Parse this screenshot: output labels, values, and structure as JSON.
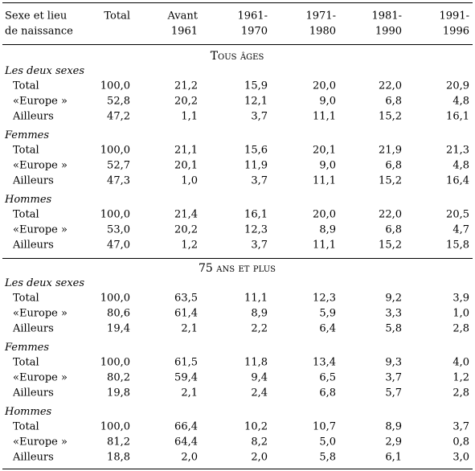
{
  "table": {
    "header": [
      [
        "Sexe et lieu",
        "de naissance"
      ],
      [
        "Total"
      ],
      [
        "Avant",
        "1961"
      ],
      [
        "1961-",
        "1970"
      ],
      [
        "1971-",
        "1980"
      ],
      [
        "1981-",
        "1990"
      ],
      [
        "1991-",
        "1996"
      ]
    ],
    "sections": [
      {
        "title": "Tous âges",
        "groups": [
          {
            "label": "Les deux sexes",
            "rows": [
              [
                "Total",
                "100,0",
                "21,2",
                "15,9",
                "20,0",
                "22,0",
                "20,9"
              ],
              [
                "«Europe »",
                "52,8",
                "20,2",
                "12,1",
                "9,0",
                "6,8",
                "4,8"
              ],
              [
                "Ailleurs",
                "47,2",
                "1,1",
                "3,7",
                "11,1",
                "15,2",
                "16,1"
              ]
            ]
          },
          {
            "label": "Femmes",
            "rows": [
              [
                "Total",
                "100,0",
                "21,1",
                "15,6",
                "20,1",
                "21,9",
                "21,3"
              ],
              [
                "«Europe »",
                "52,7",
                "20,1",
                "11,9",
                "9,0",
                "6,8",
                "4,8"
              ],
              [
                "Ailleurs",
                "47,3",
                "1,0",
                "3,7",
                "11,1",
                "15,2",
                "16,4"
              ]
            ]
          },
          {
            "label": "Hommes",
            "rows": [
              [
                "Total",
                "100,0",
                "21,4",
                "16,1",
                "20,0",
                "22,0",
                "20,5"
              ],
              [
                "«Europe »",
                "53,0",
                "20,2",
                "12,3",
                "8,9",
                "6,8",
                "4,7"
              ],
              [
                "Ailleurs",
                "47,0",
                "1,2",
                "3,7",
                "11,1",
                "15,2",
                "15,8"
              ]
            ]
          }
        ]
      },
      {
        "title": "75 ans et plus",
        "groups": [
          {
            "label": "Les deux sexes",
            "rows": [
              [
                "Total",
                "100,0",
                "63,5",
                "11,1",
                "12,3",
                "9,2",
                "3,9"
              ],
              [
                "«Europe »",
                "80,6",
                "61,4",
                "8,9",
                "5,9",
                "3,3",
                "1,0"
              ],
              [
                "Ailleurs",
                "19,4",
                "2,1",
                "2,2",
                "6,4",
                "5,8",
                "2,8"
              ]
            ]
          },
          {
            "label": "Femmes",
            "rows": [
              [
                "Total",
                "100,0",
                "61,5",
                "11,8",
                "13,4",
                "9,3",
                "4,0"
              ],
              [
                "«Europe »",
                "80,2",
                "59,4",
                "9,4",
                "6,5",
                "3,7",
                "1,2"
              ],
              [
                "Ailleurs",
                "19,8",
                "2,1",
                "2,4",
                "6,8",
                "5,7",
                "2,8"
              ]
            ]
          },
          {
            "label": "Hommes",
            "rows": [
              [
                "Total",
                "100,0",
                "66,4",
                "10,2",
                "10,7",
                "8,9",
                "3,7"
              ],
              [
                "«Europe »",
                "81,2",
                "64,4",
                "8,2",
                "5,0",
                "2,9",
                "0,8"
              ],
              [
                "Ailleurs",
                "18,8",
                "2,0",
                "2,0",
                "5,8",
                "6,1",
                "3,0"
              ]
            ]
          }
        ]
      }
    ]
  }
}
